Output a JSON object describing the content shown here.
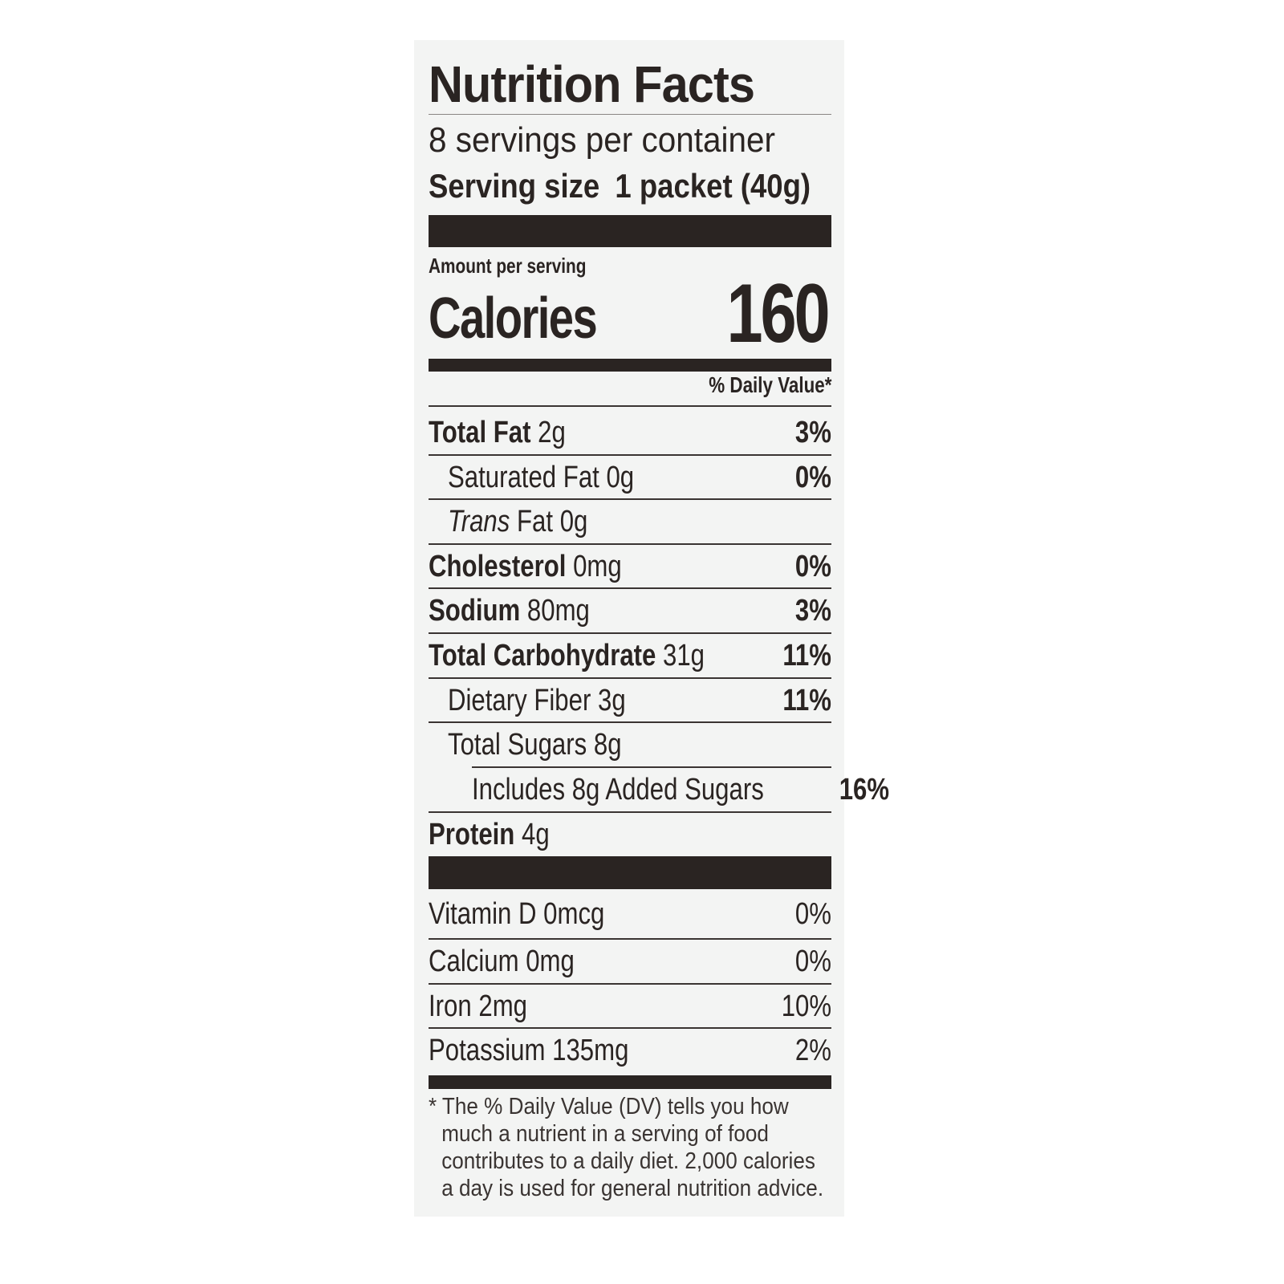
{
  "title": "Nutrition Facts",
  "servings_per_container": "8 servings per container",
  "serving_size": {
    "label": "Serving size",
    "value": "1 packet (40g)"
  },
  "amount_per_serving": "Amount per serving",
  "calories": {
    "label": "Calories",
    "value": "160"
  },
  "daily_value_header": "% Daily Value*",
  "nutrients": [
    {
      "name": "Total Fat",
      "amount": "2g",
      "dv": "3%"
    },
    {
      "name": "Saturated Fat",
      "amount": "0g",
      "dv": "0%"
    },
    {
      "name": "Trans",
      "name_rest": "Fat",
      "amount": "0g",
      "dv": ""
    },
    {
      "name": "Cholesterol",
      "amount": "0mg",
      "dv": "0%"
    },
    {
      "name": "Sodium",
      "amount": "80mg",
      "dv": "3%"
    },
    {
      "name": "Total Carbohydrate",
      "amount": "31g",
      "dv": "11%"
    },
    {
      "name": "Dietary Fiber",
      "amount": "3g",
      "dv": "11%"
    },
    {
      "name": "Total Sugars",
      "amount": "8g",
      "dv": ""
    },
    {
      "name": "Includes 8g Added Sugars",
      "amount": "",
      "dv": "16%"
    },
    {
      "name": "Protein",
      "amount": "4g",
      "dv": ""
    }
  ],
  "vitamins": [
    {
      "name": "Vitamin D",
      "amount": "0mcg",
      "dv": "0%"
    },
    {
      "name": "Calcium",
      "amount": "0mg",
      "dv": "0%"
    },
    {
      "name": "Iron",
      "amount": "2mg",
      "dv": "10%"
    },
    {
      "name": "Potassium",
      "amount": "135mg",
      "dv": "2%"
    }
  ],
  "footnote": [
    "* The % Daily Value (DV) tells you how",
    "much a nutrient in a serving of food",
    "contributes to a daily diet. 2,000 calories",
    "a day is used for general nutrition advice."
  ]
}
